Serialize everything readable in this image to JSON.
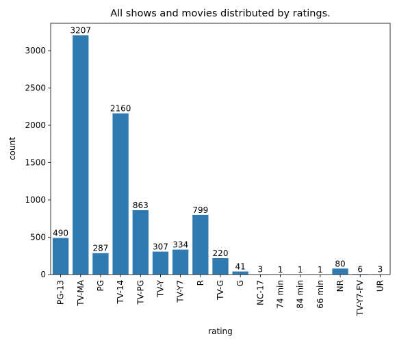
{
  "chart_data": {
    "type": "bar",
    "title": "All shows and movies distributed by ratings.",
    "xlabel": "rating",
    "ylabel": "count",
    "categories": [
      "PG-13",
      "TV-MA",
      "PG",
      "TV-14",
      "TV-PG",
      "TV-Y",
      "TV-Y7",
      "R",
      "TV-G",
      "G",
      "NC-17",
      "74 min",
      "84 min",
      "66 min",
      "NR",
      "TV-Y7-FV",
      "UR"
    ],
    "values": [
      490,
      3207,
      287,
      2160,
      863,
      307,
      334,
      799,
      220,
      41,
      3,
      1,
      1,
      1,
      80,
      6,
      3
    ],
    "ylim": [
      0,
      3367
    ],
    "yticks": [
      0,
      500,
      1000,
      1500,
      2000,
      2500,
      3000
    ],
    "grid": false,
    "bar_color": "#2f7bb1"
  }
}
